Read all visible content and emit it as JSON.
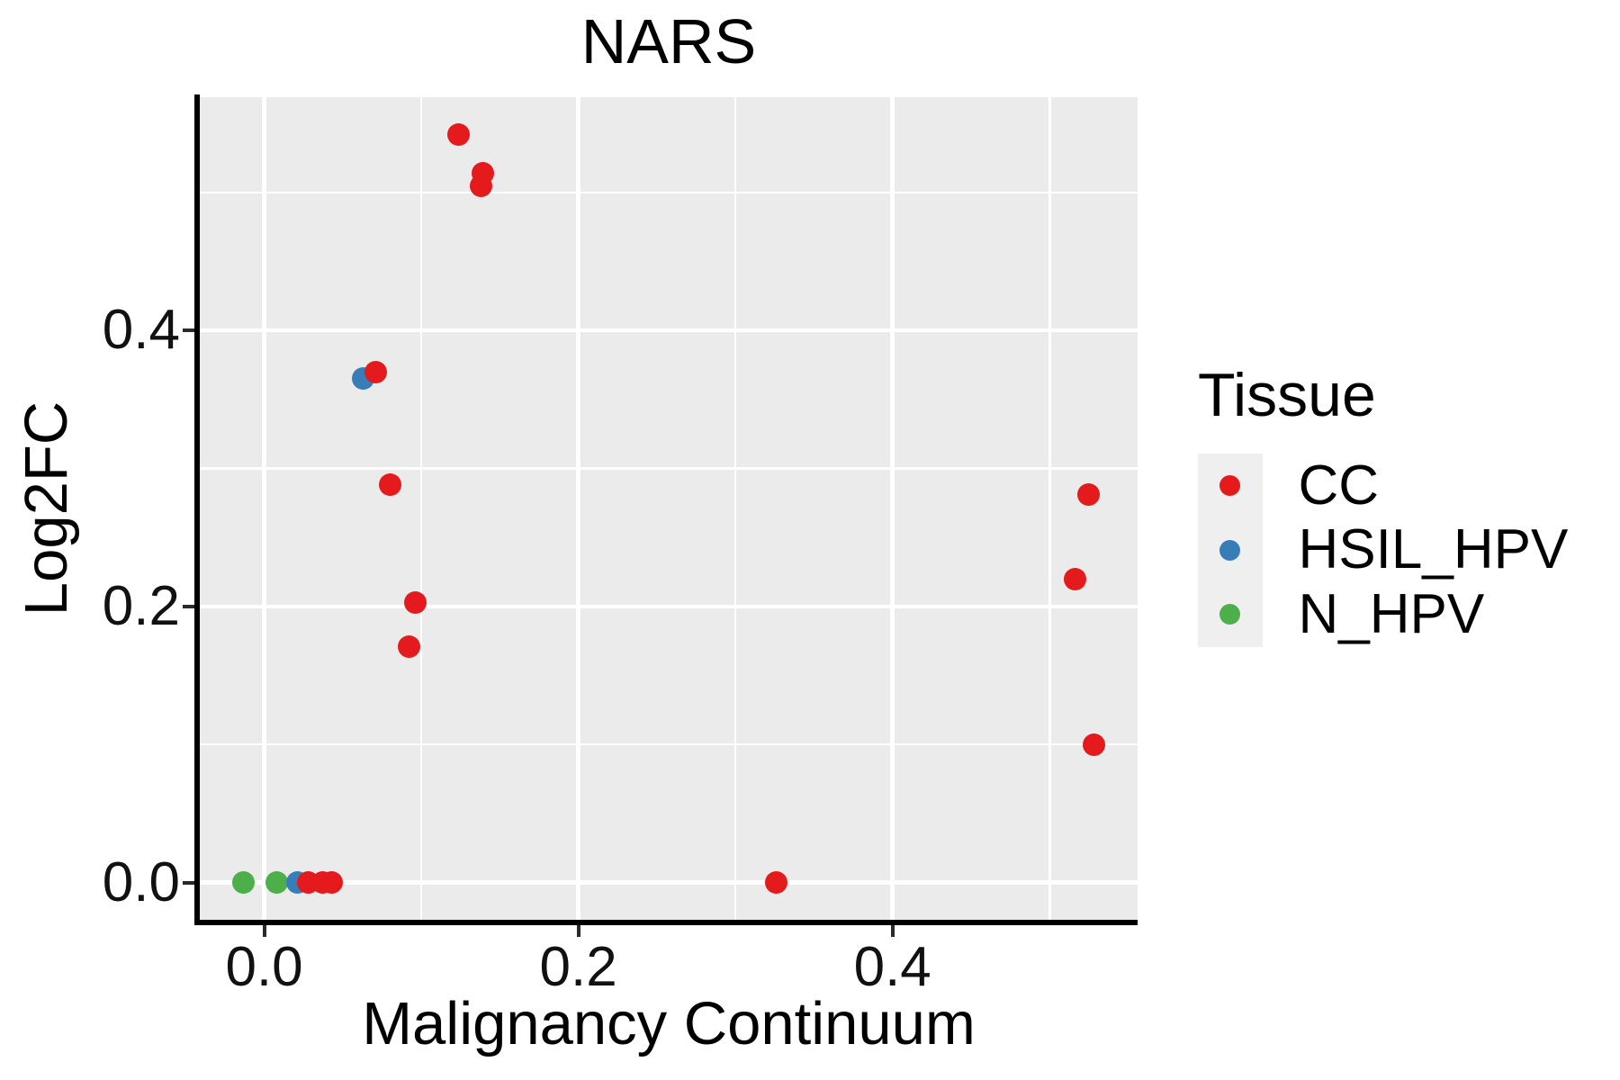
{
  "title": "NARS",
  "colors": {
    "cc_red": "#e41a1c",
    "hsil_blue": "#377eb8",
    "nhpv_green": "#4daf4a",
    "panel_bg": "#ebebeb",
    "grid": "#ffffff",
    "axis": "#000000",
    "legend_key_bg": "#efefef"
  },
  "legend": {
    "title": "Tissue",
    "entries": [
      {
        "label": "CC",
        "color": "#e41a1c"
      },
      {
        "label": "HSIL_HPV",
        "color": "#377eb8"
      },
      {
        "label": "N_HPV",
        "color": "#4daf4a"
      }
    ]
  },
  "chart_data": {
    "type": "scatter",
    "title": "NARS",
    "xlabel": "Malignancy Continuum",
    "ylabel": "Log2FC",
    "xlim": [
      -0.041,
      0.556
    ],
    "ylim": [
      -0.027,
      0.569
    ],
    "grid": "white major+minor on gray panel",
    "legend_position": "right",
    "x_ticks": [
      {
        "value": 0.0,
        "label": "0.0"
      },
      {
        "value": 0.2,
        "label": "0.2"
      },
      {
        "value": 0.4,
        "label": "0.4"
      }
    ],
    "y_ticks": [
      {
        "value": 0.0,
        "label": "0.0"
      },
      {
        "value": 0.2,
        "label": "0.2"
      },
      {
        "value": 0.4,
        "label": "0.4"
      }
    ],
    "x_minor": [
      0.1,
      0.3,
      0.5
    ],
    "y_minor": [
      0.1,
      0.3,
      0.5
    ],
    "series": [
      {
        "name": "CC",
        "color": "#e41a1c",
        "points": [
          [
            0.124,
            0.542
          ],
          [
            0.139,
            0.514
          ],
          [
            0.138,
            0.505
          ],
          [
            0.071,
            0.37
          ],
          [
            0.08,
            0.288
          ],
          [
            0.096,
            0.203
          ],
          [
            0.092,
            0.171
          ],
          [
            0.028,
            0.0
          ],
          [
            0.037,
            0.0
          ],
          [
            0.043,
            0.0
          ],
          [
            0.326,
            0.0
          ],
          [
            0.525,
            0.281
          ],
          [
            0.516,
            0.22
          ],
          [
            0.528,
            0.1
          ]
        ]
      },
      {
        "name": "HSIL_HPV",
        "color": "#377eb8",
        "points": [
          [
            0.063,
            0.365
          ],
          [
            0.021,
            0.0
          ]
        ]
      },
      {
        "name": "N_HPV",
        "color": "#4daf4a",
        "points": [
          [
            -0.013,
            0.0
          ],
          [
            0.008,
            0.0
          ]
        ]
      }
    ]
  }
}
